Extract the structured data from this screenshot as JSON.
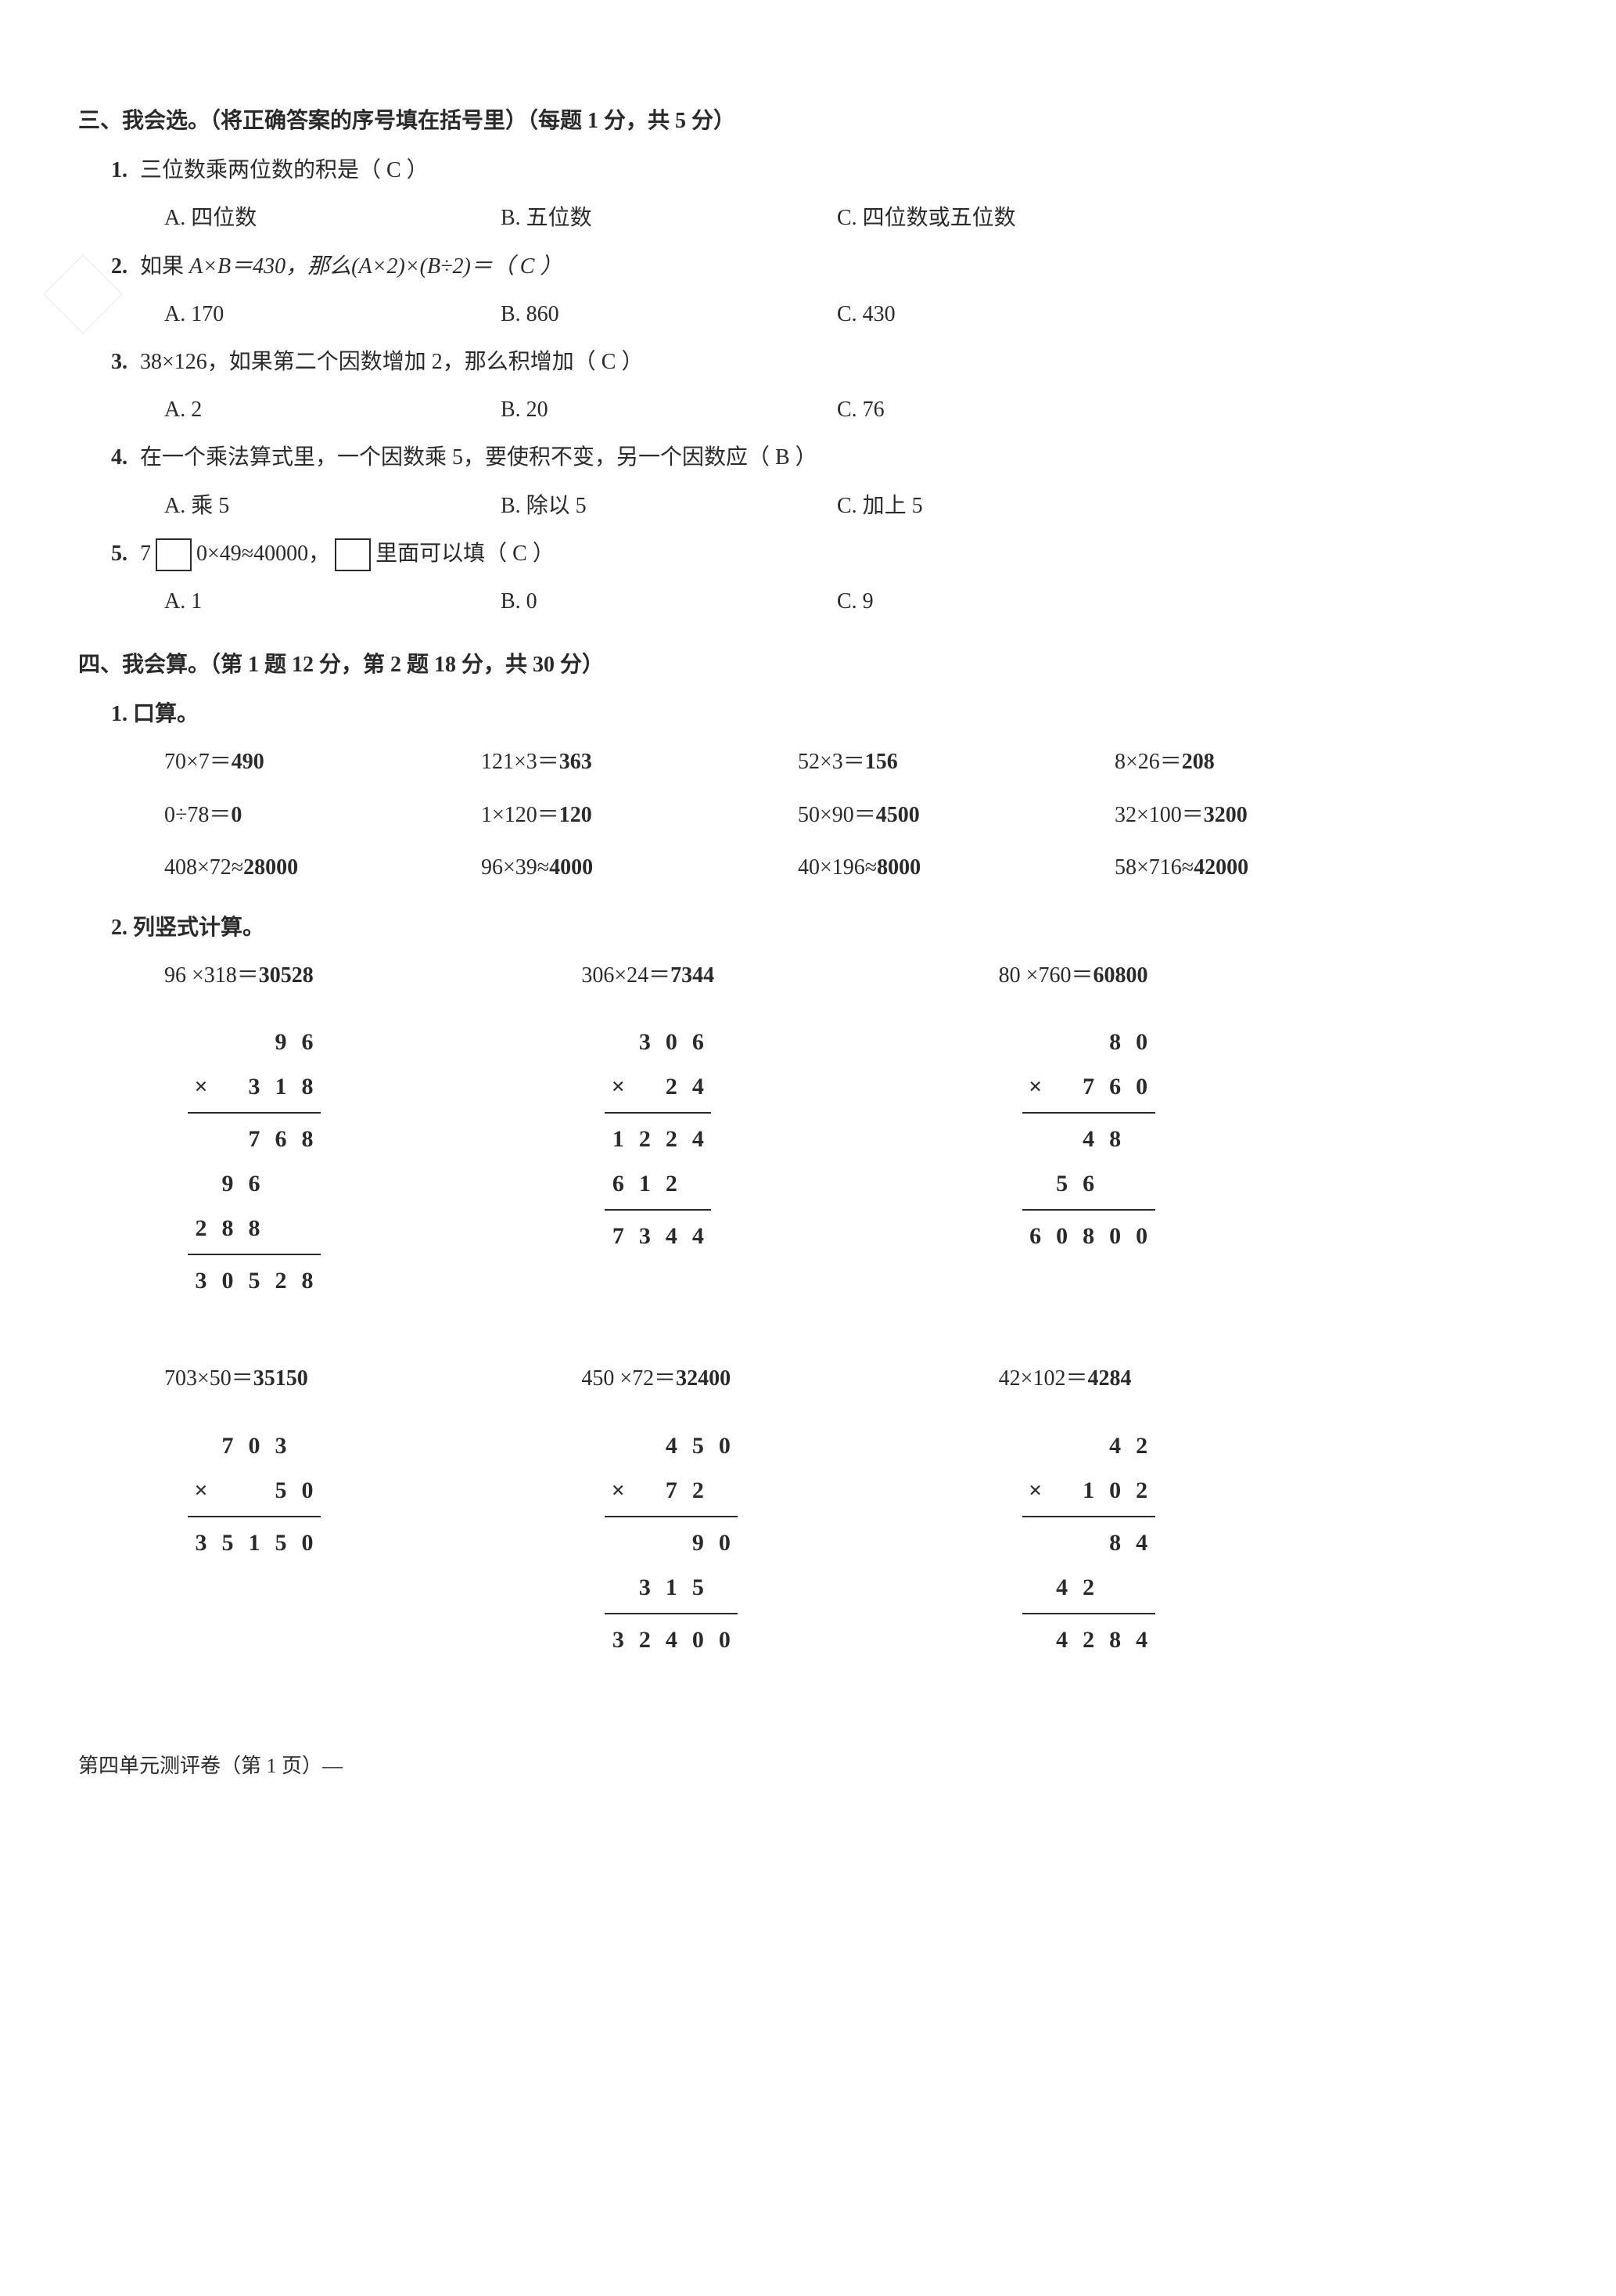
{
  "colors": {
    "text": "#2a2a2a",
    "background": "#ffffff",
    "border": "#2a2a2a",
    "stamp": "#c9c0b0"
  },
  "typography": {
    "body_font": "SimSun / 宋体",
    "body_size_pt": 21,
    "bold_weight": 700,
    "math_font": "Times New Roman"
  },
  "section3": {
    "title": "三、我会选。（将正确答案的序号填在括号里）（每题 1 分，共 5 分）",
    "items": [
      {
        "num": "1.",
        "stem": "三位数乘两位数的积是（  C  ）",
        "options": {
          "A": "A. 四位数",
          "B": "B. 五位数",
          "C": "C. 四位数或五位数"
        }
      },
      {
        "num": "2.",
        "stem_pre": "如果 ",
        "stem_math": "A×B＝430，那么(A×2)×(B÷2)＝（  C  ）",
        "options": {
          "A": "A. 170",
          "B": "B. 860",
          "C": "C. 430"
        }
      },
      {
        "num": "3.",
        "stem": "38×126，如果第二个因数增加 2，那么积增加（  C  ）",
        "options": {
          "A": "A. 2",
          "B": "B. 20",
          "C": "C. 76"
        }
      },
      {
        "num": "4.",
        "stem": "在一个乘法算式里，一个因数乘 5，要使积不变，另一个因数应（  B  ）",
        "options": {
          "A": "A. 乘 5",
          "B": "B. 除以 5",
          "C": "C. 加上 5"
        }
      },
      {
        "num": "5.",
        "stem_pre": "7",
        "stem_mid": "0×49≈40000，",
        "stem_post": "里面可以填（  C  ）",
        "options": {
          "A": "A. 1",
          "B": "B. 0",
          "C": "C. 9"
        }
      }
    ]
  },
  "section4": {
    "title": "四、我会算。（第 1 题 12 分，第 2 题 18 分，共 30 分）",
    "q1": {
      "label": "1. 口算。",
      "rows": [
        [
          {
            "lhs": "70×7＝",
            "ans": "490"
          },
          {
            "lhs": "121×3＝",
            "ans": "363"
          },
          {
            "lhs": "52×3＝",
            "ans": "156"
          },
          {
            "lhs": "8×26＝",
            "ans": "208"
          }
        ],
        [
          {
            "lhs": "0÷78＝",
            "ans": "0"
          },
          {
            "lhs": "1×120＝",
            "ans": "120"
          },
          {
            "lhs": "50×90＝",
            "ans": "4500"
          },
          {
            "lhs": "32×100＝",
            "ans": "3200"
          }
        ],
        [
          {
            "lhs": "408×72≈",
            "ans": "28000"
          },
          {
            "lhs": "96×39≈",
            "ans": "4000"
          },
          {
            "lhs": "40×196≈",
            "ans": "8000"
          },
          {
            "lhs": "58×716≈",
            "ans": "42000"
          }
        ]
      ]
    },
    "q2": {
      "label": "2. 列竖式计算。",
      "row1": [
        {
          "head_lhs": "96 ×318＝",
          "head_ans": "30528",
          "width": 5,
          "lines": [
            {
              "cells": [
                "",
                "",
                "",
                "9",
                "6"
              ]
            },
            {
              "cells": [
                "×",
                "3",
                "1",
                "8",
                ""
              ],
              "align": "right",
              "raw": [
                "×",
                "",
                "3",
                "1",
                "8"
              ]
            },
            {
              "hr": true
            },
            {
              "cells": [
                "",
                "",
                "7",
                "6",
                "8"
              ]
            },
            {
              "cells": [
                "",
                "9",
                "6",
                "",
                ""
              ]
            },
            {
              "cells": [
                "2",
                "8",
                "8",
                "",
                ""
              ]
            },
            {
              "hr": true
            },
            {
              "cells": [
                "3",
                "0",
                "5",
                "2",
                "8"
              ]
            }
          ]
        },
        {
          "head_lhs": "306×24＝",
          "head_ans": "7344",
          "width": 4,
          "lines": [
            {
              "cells": [
                "",
                "3",
                "0",
                "6"
              ]
            },
            {
              "cells": [
                "×",
                "",
                "2",
                "4"
              ]
            },
            {
              "hr": true
            },
            {
              "cells": [
                "1",
                "2",
                "2",
                "4"
              ]
            },
            {
              "cells": [
                "6",
                "1",
                "2",
                ""
              ]
            },
            {
              "hr": true
            },
            {
              "cells": [
                "7",
                "3",
                "4",
                "4"
              ]
            }
          ]
        },
        {
          "head_lhs": "80 ×760＝",
          "head_ans": "60800",
          "width": 5,
          "lines": [
            {
              "cells": [
                "",
                "",
                "",
                "8",
                "0"
              ]
            },
            {
              "cells": [
                "×",
                "",
                "7",
                "6",
                "0"
              ]
            },
            {
              "hr": true
            },
            {
              "cells": [
                "",
                "",
                "4",
                "8",
                ""
              ]
            },
            {
              "cells": [
                "",
                "5",
                "6",
                "",
                ""
              ]
            },
            {
              "hr": true
            },
            {
              "cells": [
                "6",
                "0",
                "8",
                "0",
                "0"
              ]
            }
          ]
        }
      ],
      "row2": [
        {
          "head_lhs": "703×50＝",
          "head_ans": "35150",
          "width": 5,
          "lines": [
            {
              "cells": [
                "",
                "7",
                "0",
                "3",
                ""
              ]
            },
            {
              "cells": [
                "×",
                "",
                "",
                "5",
                "0"
              ]
            },
            {
              "hr": true
            },
            {
              "cells": [
                "3",
                "5",
                "1",
                "5",
                "0"
              ]
            }
          ]
        },
        {
          "head_lhs": "450 ×72＝",
          "head_ans": "32400",
          "width": 5,
          "lines": [
            {
              "cells": [
                "",
                "",
                "4",
                "5",
                "0"
              ]
            },
            {
              "cells": [
                "×",
                "",
                "7",
                "2",
                ""
              ]
            },
            {
              "hr": true
            },
            {
              "cells": [
                "",
                "",
                "",
                "9",
                "0"
              ]
            },
            {
              "cells": [
                "",
                "3",
                "1",
                "5",
                ""
              ]
            },
            {
              "hr": true
            },
            {
              "cells": [
                "3",
                "2",
                "4",
                "0",
                "0"
              ]
            }
          ]
        },
        {
          "head_lhs": "42×102＝",
          "head_ans": "4284",
          "width": 5,
          "lines": [
            {
              "cells": [
                "",
                "",
                "",
                "4",
                "2"
              ]
            },
            {
              "cells": [
                "×",
                "",
                "1",
                "0",
                "2"
              ]
            },
            {
              "hr": true
            },
            {
              "cells": [
                "",
                "",
                "",
                "8",
                "4"
              ]
            },
            {
              "cells": [
                "",
                "4",
                "2",
                "",
                ""
              ]
            },
            {
              "hr": true
            },
            {
              "cells": [
                "",
                "4",
                "2",
                "8",
                "4"
              ]
            }
          ]
        }
      ]
    }
  },
  "footer": "第四单元测评卷（第 1 页）—"
}
